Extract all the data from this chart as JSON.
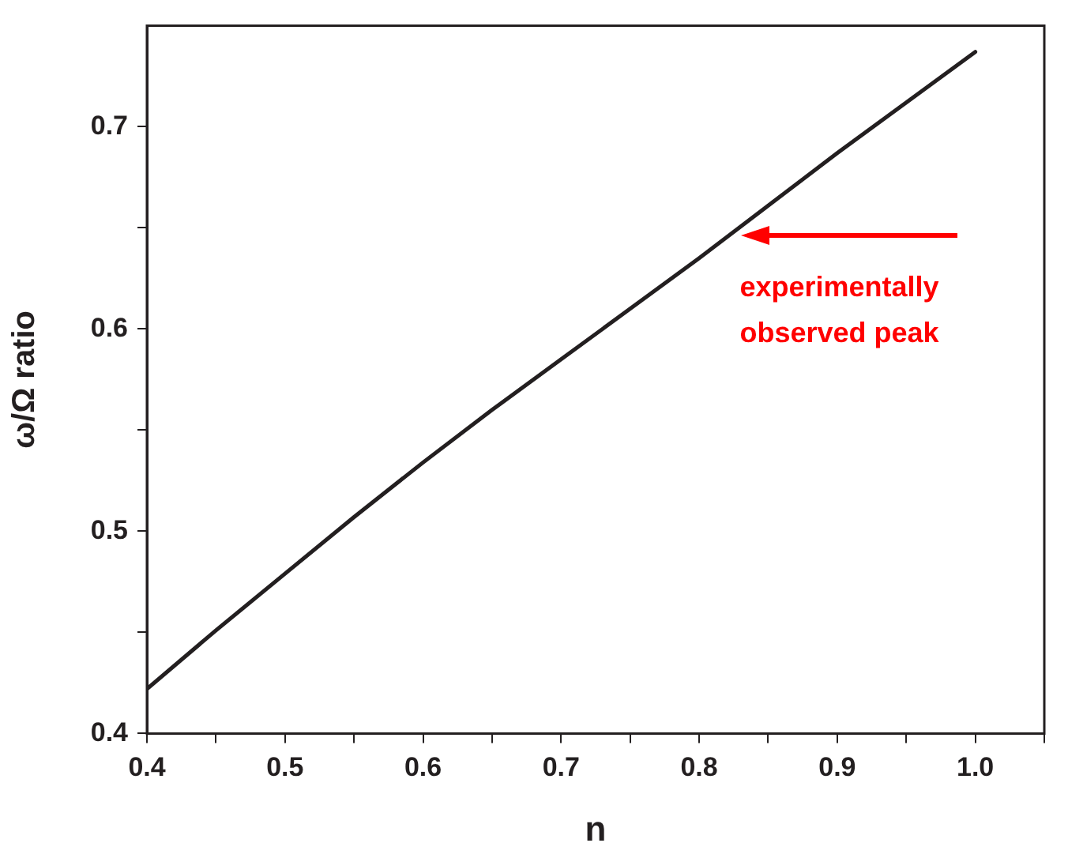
{
  "chart_data": {
    "type": "line",
    "xlabel": "n",
    "ylabel": "ω/Ω ratio",
    "x": [
      0.4,
      0.45,
      0.5,
      0.55,
      0.6,
      0.65,
      0.7,
      0.75,
      0.8,
      0.85,
      0.9,
      0.95,
      1.0
    ],
    "series": [
      {
        "color": "#231f20",
        "values": [
          0.422,
          0.451,
          0.479,
          0.507,
          0.534,
          0.56,
          0.585,
          0.61,
          0.635,
          0.661,
          0.687,
          0.712,
          0.737
        ]
      }
    ],
    "xlim": [
      0.4,
      1.05
    ],
    "ylim": [
      0.4,
      0.75
    ],
    "xticks": [
      0.4,
      {
        "value": 0.45,
        "label": null
      },
      0.5,
      {
        "value": 0.55,
        "label": null
      },
      0.6,
      {
        "value": 0.65,
        "label": null
      },
      0.7,
      {
        "value": 0.75,
        "label": null
      },
      0.8,
      {
        "value": 0.85,
        "label": null
      },
      0.9,
      {
        "value": 0.95,
        "label": null
      },
      {
        "value": 1.0,
        "label": "1.0"
      },
      {
        "value": 1.05,
        "label": null
      }
    ],
    "yticks": [
      0.4,
      {
        "value": 0.45,
        "label": null
      },
      0.5,
      {
        "value": 0.55,
        "label": null
      },
      0.6,
      {
        "value": 0.65,
        "label": null
      },
      0.7
    ],
    "annotations": [
      {
        "text": "experimentally observed peak",
        "x": 0.83,
        "y": 0.646
      }
    ],
    "grid": false,
    "legend": false,
    "marker": "none",
    "line_style": "solid"
  }
}
